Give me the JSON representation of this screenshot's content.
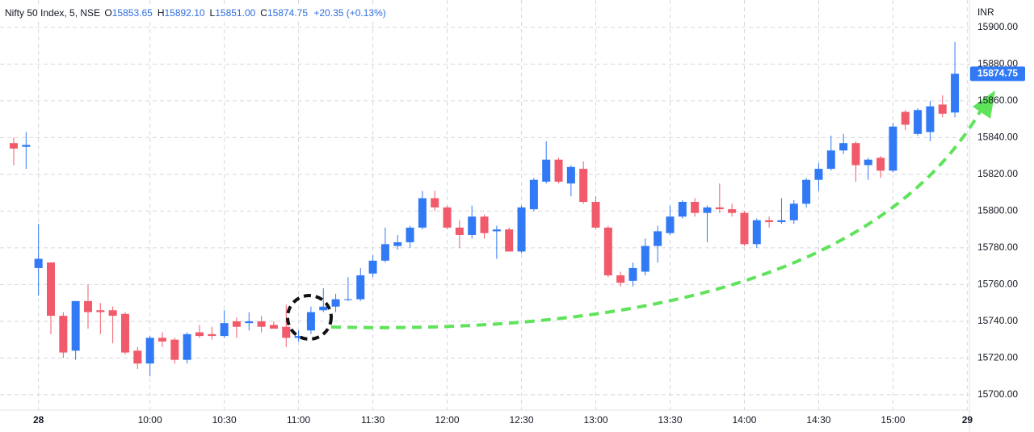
{
  "chart_data": {
    "type": "candlestick",
    "header": {
      "symbol": "Nifty 50 Index, 5, NSE",
      "fields": [
        {
          "key": "O",
          "value": "15853.65"
        },
        {
          "key": "H",
          "value": "15892.10"
        },
        {
          "key": "L",
          "value": "15851.00"
        },
        {
          "key": "C",
          "value": "15874.75"
        }
      ],
      "change": "+20.35 (+0.13%)"
    },
    "currency": "INR",
    "last_price_label": "15874.75",
    "up_color": "#3179f5",
    "down_color": "#f05a6b",
    "grid": true,
    "categories": [
      null,
      null,
      "28",
      null,
      null,
      null,
      null,
      null,
      null,
      null,
      null,
      "10:00",
      null,
      null,
      null,
      null,
      null,
      "10:30",
      null,
      null,
      null,
      null,
      null,
      "11:00",
      null,
      null,
      null,
      null,
      null,
      "11:30",
      null,
      null,
      null,
      null,
      null,
      "12:00",
      null,
      null,
      null,
      null,
      null,
      "12:30",
      null,
      null,
      null,
      null,
      null,
      "13:00",
      null,
      null,
      null,
      null,
      null,
      "13:30",
      null,
      null,
      null,
      null,
      null,
      "14:00",
      null,
      null,
      null,
      null,
      null,
      "14:30",
      null,
      null,
      null,
      null,
      null,
      "15:00",
      null,
      null,
      null,
      null,
      null,
      "29"
    ],
    "open": [
      15837,
      15835,
      15769,
      15772,
      15743,
      15724,
      15751,
      15746,
      15746,
      15744,
      15724,
      15717,
      15731,
      15730,
      15719,
      15734,
      15733,
      15732,
      15740,
      15739,
      15740,
      15738,
      15737,
      15731,
      15735,
      15746,
      15748,
      15752,
      15752,
      15766,
      15773,
      15781,
      15783,
      15791,
      15807,
      15802,
      15791,
      15787,
      15797,
      15789,
      15790,
      15778,
      15801,
      15816,
      15828,
      15815,
      15823,
      15805,
      15791,
      15765,
      15762,
      15767,
      15781,
      15788,
      15797,
      15805,
      15799,
      15802,
      15801,
      15799,
      15782,
      15795,
      15794,
      15795,
      15804,
      15817,
      15823,
      15833,
      15837,
      15825,
      15829,
      15822,
      15854,
      15842,
      15843,
      15858,
      15853.65,
      null
    ],
    "high": [
      15840,
      15843,
      15793,
      15772,
      15745,
      15751,
      15760,
      15750,
      15748,
      15745,
      15726,
      15732,
      15734,
      15731,
      15734,
      15738,
      15737,
      15746,
      15742,
      15745,
      15743,
      15740,
      15749,
      15735,
      15748,
      15758,
      15755,
      15764,
      15769,
      15776,
      15791,
      15787,
      15792,
      15811,
      15811,
      15803,
      15795,
      15803,
      15798,
      15792,
      15791,
      15803,
      15818,
      15838,
      15829,
      15825,
      15827,
      15808,
      15792,
      15767,
      15772,
      15785,
      15792,
      15803,
      15806,
      15807,
      15803,
      15815,
      15804,
      15800,
      15796,
      15797,
      15807,
      15806,
      15818,
      15826,
      15841,
      15842,
      15838,
      15829,
      15830,
      15848,
      15855,
      15856,
      15860,
      15863,
      15892.1,
      null
    ],
    "low": [
      15825,
      15823,
      15754,
      15733,
      15720,
      15719,
      15736,
      15733,
      15728,
      15722,
      15714,
      15710,
      15726,
      15717,
      15717,
      15731,
      15730,
      15731,
      15731,
      15735,
      15734,
      15736,
      15726,
      15729,
      15733,
      15745,
      15745,
      15751,
      15751,
      15764,
      15772,
      15779,
      15780,
      15790,
      15800,
      15790,
      15780,
      15785,
      15785,
      15774,
      15778,
      15777,
      15800,
      15815,
      15815,
      15808,
      15804,
      15790,
      15764,
      15759,
      15759,
      15765,
      15772,
      15787,
      15796,
      15797,
      15783,
      15799,
      15797,
      15781,
      15780,
      15791,
      15793,
      15793,
      15802,
      15811,
      15822,
      15831,
      15816,
      15817,
      15818,
      15821,
      15844,
      15841,
      15838,
      15851,
      15851,
      null
    ],
    "close": [
      15834,
      15836,
      15774,
      15743,
      15723,
      15751,
      15745,
      15745,
      15743,
      15723,
      15717,
      15731,
      15729,
      15719,
      15733,
      15732,
      15732,
      15739,
      15737,
      15740,
      15737,
      15736,
      15731,
      15732,
      15745,
      15748,
      15752,
      15752,
      15765,
      15773,
      15782,
      15783,
      15791,
      15807,
      15802,
      15791,
      15787,
      15797,
      15788,
      15790,
      15778,
      15802,
      15817,
      15828,
      15816,
      15824,
      15805,
      15791,
      15765,
      15761,
      15769,
      15781,
      15789,
      15797,
      15805,
      15799,
      15802,
      15801,
      15799,
      15782,
      15795,
      15794,
      15795,
      15804,
      15817,
      15823,
      15833,
      15837,
      15825,
      15828,
      15822,
      15846,
      15847,
      15855,
      15857,
      15853,
      15874.75,
      null
    ],
    "ylim": [
      15691.6,
      15914.9
    ],
    "yticks": [
      {
        "value": 15700,
        "label": "15700.00"
      },
      {
        "value": 15720,
        "label": "15720.00"
      },
      {
        "value": 15740,
        "label": "15740.00"
      },
      {
        "value": 15760,
        "label": "15760.00"
      },
      {
        "value": 15780,
        "label": "15780.00"
      },
      {
        "value": 15800,
        "label": "15800.00"
      },
      {
        "value": 15820,
        "label": "15820.00"
      },
      {
        "value": 15840,
        "label": "15840.00"
      },
      {
        "value": 15860,
        "label": "15860.00"
      },
      {
        "value": 15880,
        "label": "15880.00"
      },
      {
        "value": 15900,
        "label": "15900.00"
      }
    ]
  }
}
